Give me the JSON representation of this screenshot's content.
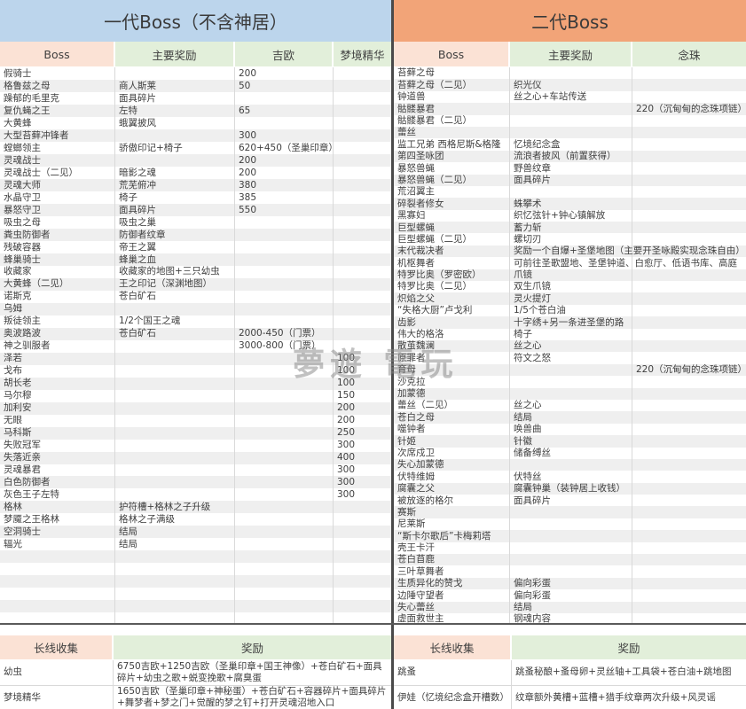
{
  "watermark": "夢遊 電玩",
  "colors": {
    "blue": "#BCD5EC",
    "orange": "#F2A478",
    "peach": "#FBE2D5",
    "green": "#E2EFDA",
    "stripe": "#EFEFEF",
    "grid": "#D9D9D9",
    "text": "#3F3F3F",
    "dark": "#4A4A4A"
  },
  "left_table": {
    "title": "一代Boss（不含神居）",
    "columns": [
      "Boss",
      "主要奖励",
      "吉欧",
      "梦境精华"
    ],
    "rows": [
      [
        "假骑士",
        "",
        "200",
        ""
      ],
      [
        "格鲁兹之母",
        "商人斯莱",
        "50",
        ""
      ],
      [
        "躁郁的毛里克",
        "面具碎片",
        "",
        ""
      ],
      [
        "复仇蝇之王",
        "左特",
        "65",
        ""
      ],
      [
        "大黄蜂",
        "蛾翼披风",
        "",
        ""
      ],
      [
        "大型苔藓冲锋者",
        "",
        "300",
        ""
      ],
      [
        "螳螂领主",
        "骄傲印记+椅子",
        "620+450（圣巢印章）",
        ""
      ],
      [
        "灵魂战士",
        "",
        "200",
        ""
      ],
      [
        "灵魂战士（二见）",
        "暗影之魂",
        "200",
        ""
      ],
      [
        "灵魂大师",
        "荒芜俯冲",
        "380",
        ""
      ],
      [
        "水晶守卫",
        "椅子",
        "385",
        ""
      ],
      [
        "暴怒守卫",
        "面具碎片",
        "550",
        ""
      ],
      [
        "吸虫之母",
        "吸虫之巢",
        "",
        ""
      ],
      [
        "粪虫防御者",
        "防御者纹章",
        "",
        ""
      ],
      [
        "残破容器",
        "帝王之翼",
        "",
        ""
      ],
      [
        "蜂巢骑士",
        "蜂巢之血",
        "",
        ""
      ],
      [
        "收藏家",
        "收藏家的地图+三只幼虫",
        "",
        ""
      ],
      [
        "大黄蜂（二见）",
        "王之印记（深渊地图）",
        "",
        ""
      ],
      [
        "诺斯克",
        "苍白矿石",
        "",
        ""
      ],
      [
        "乌姆",
        "",
        "",
        ""
      ],
      [
        "叛徒领主",
        "1/2个国王之魂",
        "",
        ""
      ],
      [
        "奥波路波",
        "苍白矿石",
        "2000-450（门票）",
        ""
      ],
      [
        "神之驯服者",
        "",
        "3000-800（门票）",
        ""
      ],
      [
        "泽若",
        "",
        "",
        "100"
      ],
      [
        "戈布",
        "",
        "",
        "100"
      ],
      [
        "胡长老",
        "",
        "",
        "100"
      ],
      [
        "马尔穆",
        "",
        "",
        "150"
      ],
      [
        "加利安",
        "",
        "",
        "200"
      ],
      [
        "无眼",
        "",
        "",
        "200"
      ],
      [
        "马科斯",
        "",
        "",
        "250"
      ],
      [
        "失败冠军",
        "",
        "",
        "300"
      ],
      [
        "失落近亲",
        "",
        "",
        "400"
      ],
      [
        "灵魂暴君",
        "",
        "",
        "300"
      ],
      [
        "白色防御者",
        "",
        "",
        "300"
      ],
      [
        "灰色王子左特",
        "",
        "",
        "300"
      ],
      [
        "格林",
        "护符槽+格林之子升级",
        "",
        ""
      ],
      [
        "梦魇之王格林",
        "格林之子满级",
        "",
        ""
      ],
      [
        "空洞骑士",
        "结局",
        "",
        ""
      ],
      [
        "辐光",
        "结局",
        "",
        ""
      ],
      [
        "",
        "",
        "",
        ""
      ],
      [
        "",
        "",
        "",
        ""
      ],
      [
        "",
        "",
        "",
        ""
      ],
      [
        "",
        "",
        "",
        ""
      ],
      [
        "",
        "",
        "",
        ""
      ],
      [
        "",
        "",
        "",
        ""
      ]
    ]
  },
  "right_table": {
    "title": "二代Boss",
    "columns": [
      "Boss",
      "主要奖励",
      "念珠"
    ],
    "rows": [
      [
        "苔藓之母",
        "",
        ""
      ],
      [
        "苔藓之母（二见）",
        "织光仪",
        ""
      ],
      [
        "钟道兽",
        "丝之心+车站传送",
        ""
      ],
      [
        "骷髅暴君",
        "",
        "220（沉甸甸的念珠项链）"
      ],
      [
        "骷髅暴君（二见）",
        "",
        ""
      ],
      [
        "蕾丝",
        "",
        ""
      ],
      [
        "监工兄弟 西格尼斯&格隆",
        "忆境纪念盒",
        ""
      ],
      [
        "第四圣咏团",
        "流浪者披风（前置获得）",
        ""
      ],
      [
        "暴怒兽蝇",
        "野兽纹章",
        ""
      ],
      [
        "暴怒兽蝇（二见）",
        "面具碎片",
        ""
      ],
      [
        "荒沼翼主",
        "",
        ""
      ],
      [
        "碎裂者修女",
        "蛛攀术",
        ""
      ],
      [
        "黑寡妇",
        "织忆弦针+钟心镇解放",
        ""
      ],
      [
        "巨型螺蝇",
        "蓄力斩",
        ""
      ],
      [
        "巨型螺蝇（二见）",
        "螺切刃",
        ""
      ],
      [
        "末代裁决者",
        "奖励一个自爆+圣堡地图（主要开圣咏殿实现念珠自由）",
        ""
      ],
      [
        "机枢舞者",
        "可前往圣歌盟地、圣堡钟道、白愈厅、低语书库、高庭",
        ""
      ],
      [
        "特罗比奥（罗密欧）",
        "爪镜",
        ""
      ],
      [
        "特罗比奥（二见）",
        "双生爪镜",
        ""
      ],
      [
        "炽焰之父",
        "灵火提灯",
        ""
      ],
      [
        "“失格大厨”卢戈利",
        "1/5个苍白油",
        ""
      ],
      [
        "齿影",
        "十字绣+另一条进圣堡的路",
        ""
      ],
      [
        "伟大的格洛",
        "椅子",
        ""
      ],
      [
        "散茧魏澜",
        "丝之心",
        ""
      ],
      [
        "原罪者",
        "符文之怒",
        ""
      ],
      [
        "育母",
        "",
        "220（沉甸甸的念珠项链）"
      ],
      [
        "沙克拉",
        "",
        ""
      ],
      [
        "加蒙德",
        "",
        ""
      ],
      [
        "蕾丝（二见）",
        "丝之心",
        ""
      ],
      [
        "苍白之母",
        "结局",
        ""
      ],
      [
        "噬钟者",
        "唤兽曲",
        ""
      ],
      [
        "针姬",
        "针徽",
        ""
      ],
      [
        "次席戍卫",
        "储备缚丝",
        ""
      ],
      [
        "失心加蒙德",
        "",
        ""
      ],
      [
        "伏特维姆",
        "伏特丝",
        ""
      ],
      [
        "腐囊之父",
        "腐囊钟巢（装钟居上收钱）",
        ""
      ],
      [
        "被放逐的格尔",
        "面具碎片",
        ""
      ],
      [
        "赛斯",
        "",
        ""
      ],
      [
        "尼莱斯",
        "",
        ""
      ],
      [
        "“斯卡尔歌后”卡梅莉塔",
        "",
        ""
      ],
      [
        "壳王卡汗",
        "",
        ""
      ],
      [
        "苍白苜鹿",
        "",
        ""
      ],
      [
        "三叶草舞者",
        "",
        ""
      ],
      [
        "生质异化的赞戈",
        "偏向彩蛋",
        ""
      ],
      [
        "边陲守望者",
        "偏向彩蛋",
        ""
      ],
      [
        "失心蕾丝",
        "结局",
        ""
      ],
      [
        "虚面救世主",
        "钢魂内容",
        ""
      ]
    ]
  },
  "left_bottom": {
    "columns": [
      "长线收集",
      "奖励"
    ],
    "rows": [
      [
        "幼虫",
        "6750吉欧+1250吉欧（圣巢印章+国王神像）+苍白矿石+面具碎片+幼虫之歌+蜕变挽歌+腐臭蛋"
      ],
      [
        "梦境精华",
        "1650吉欧（圣巢印章+神秘蛋）+苍白矿石+容器碎片+面具碎片+舞梦者+梦之门+觉醒的梦之钉+打开灵魂沼地入口"
      ]
    ]
  },
  "right_bottom": {
    "columns": [
      "长线收集",
      "奖励"
    ],
    "rows": [
      [
        "跳蚤",
        "跳蚤秘酿+蚤母卵+灵丝轴+工具袋+苍白油+跳地图"
      ],
      [
        "伊娃（忆境纪念盒开槽数）",
        "纹章额外黄槽+蓝槽+猎手纹章两次升级+风灵谣"
      ]
    ]
  }
}
